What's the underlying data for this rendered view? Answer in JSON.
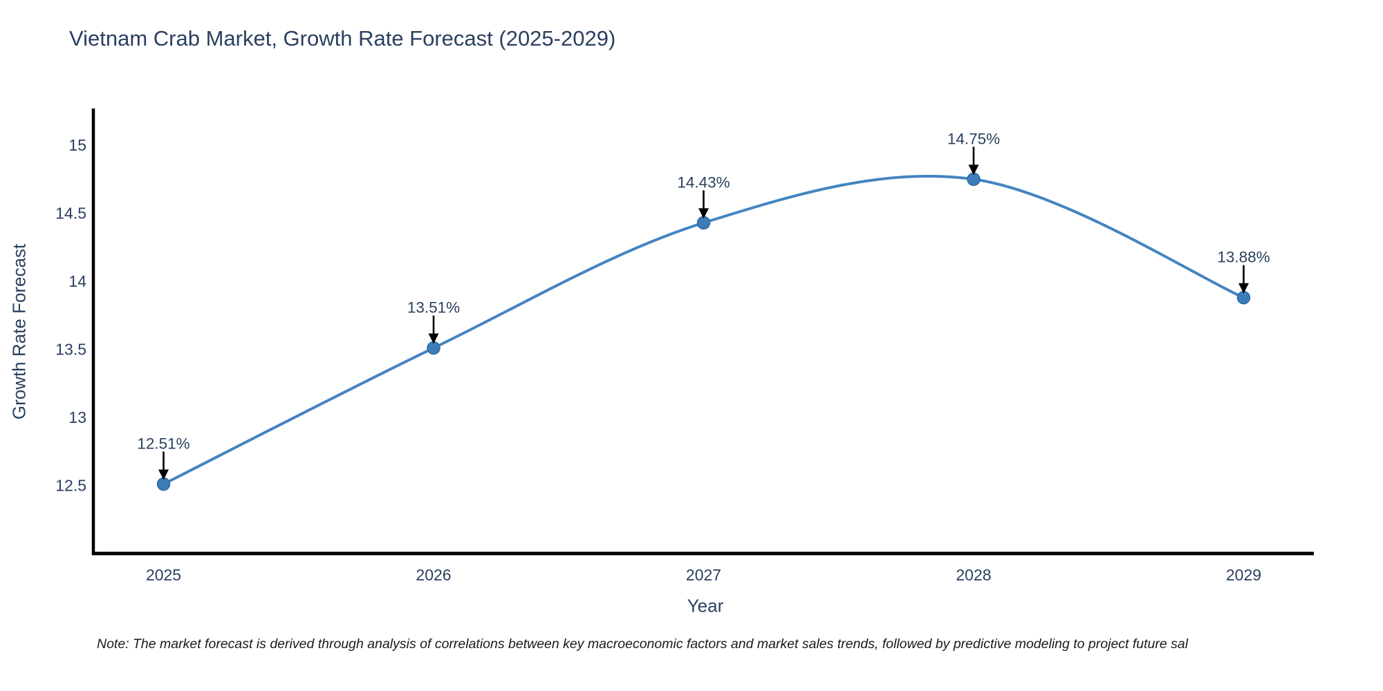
{
  "page": {
    "background": "#ffffff"
  },
  "note": "Note: The market forecast is derived through analysis of correlations between key macroeconomic factors and market sales trends, followed by predictive modeling to project future sal",
  "chart_data": {
    "type": "line",
    "title": "Vietnam Crab Market, Growth Rate Forecast (2025-2029)",
    "xlabel": "Year",
    "ylabel": "Growth Rate Forecast",
    "categories": [
      2025,
      2026,
      2027,
      2028,
      2029
    ],
    "series": [
      {
        "name": "Growth Rate Forecast",
        "values": [
          12.51,
          13.51,
          14.43,
          14.75,
          13.88
        ],
        "point_labels": [
          "12.51%",
          "13.51%",
          "14.43%",
          "14.75%",
          "13.88%"
        ]
      }
    ],
    "line_shape": "spline",
    "markers": true,
    "grid": false,
    "legend_position": "none",
    "y_ticks": [
      12.5,
      13,
      13.5,
      14,
      14.5,
      15
    ],
    "ylim": [
      12.0,
      15.27
    ],
    "xlim": [
      2024.74,
      2029.26
    ],
    "colors": {
      "line": "#4484c0",
      "marker_fill": "#3c7cb8",
      "marker_edge": "#2f6aa0",
      "axis_line": "#000000",
      "tick_text": "#2a3f5f",
      "annotation_text": "#2a3f5f",
      "annotation_arrow": "#000000"
    }
  }
}
